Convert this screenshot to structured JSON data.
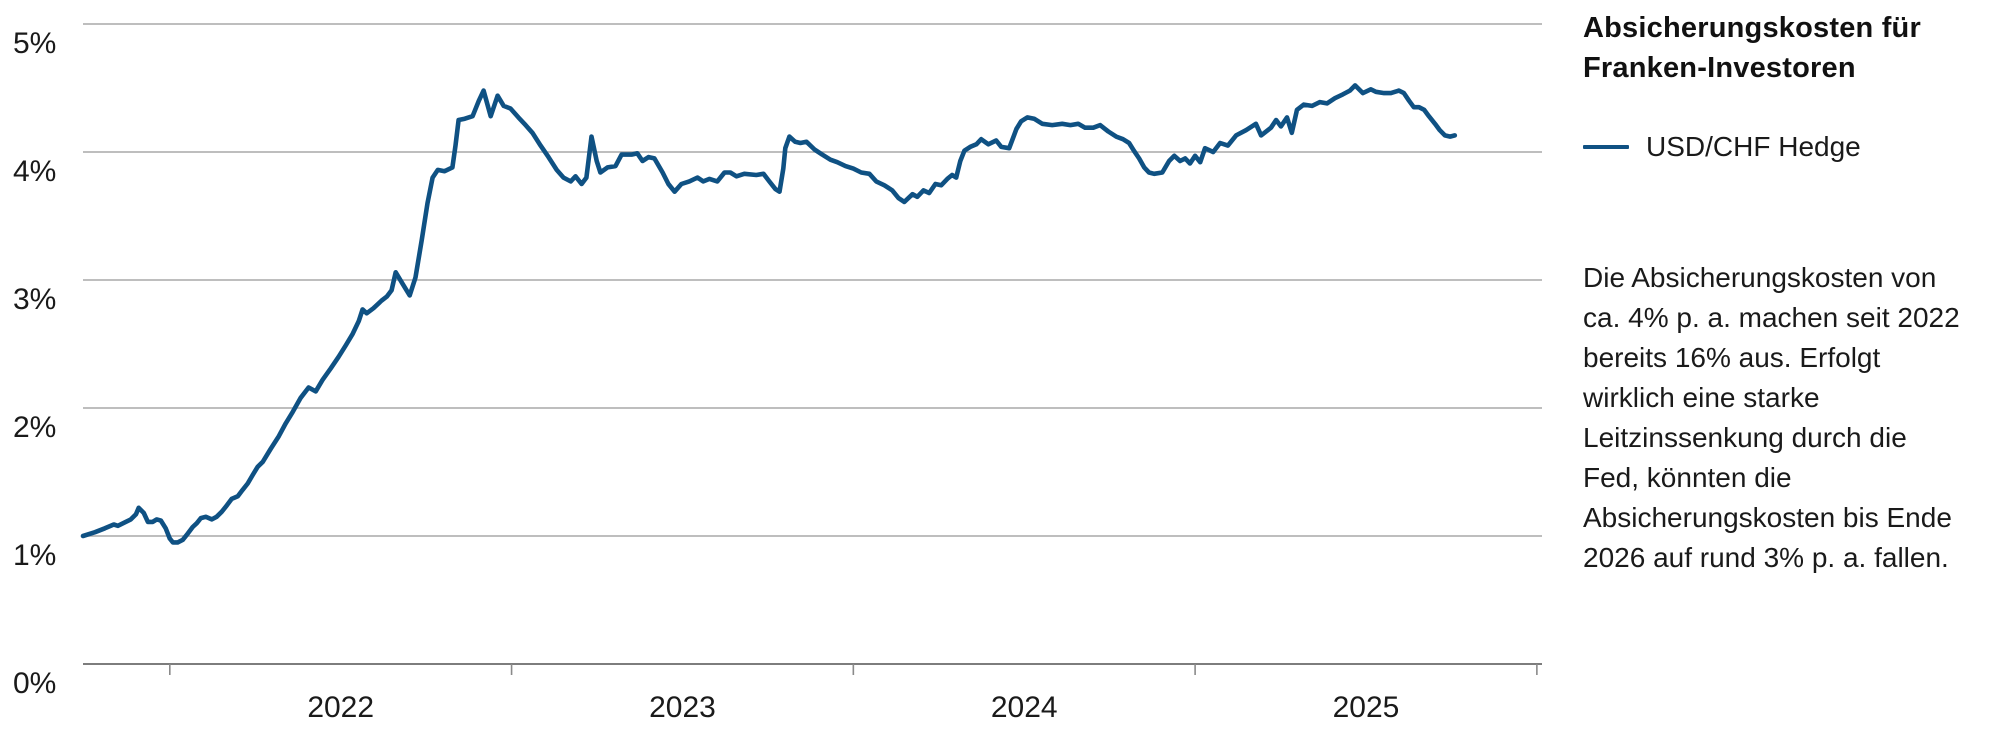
{
  "header": {
    "title": "Absicherungskosten für Franken-Investoren"
  },
  "legend": {
    "label": "USD/CHF Hedge"
  },
  "commentary": "Die Absicherungskosten von ca. 4% p. a. machen seit 2022 bereits 16% aus. Erfolgt wirklich eine starke Leitzinssenkung durch die Fed, könnten die Absicherungskosten bis Ende 2026 auf rund 3% p. a. fallen.",
  "colors": {
    "line": "#0F5183",
    "grid": "#A8A8A8",
    "axis": "#7D7D7D",
    "tick": "#8A8A8A",
    "text": "#1A1A1A"
  },
  "chart_data": {
    "type": "line",
    "title": "Absicherungskosten für Franken-Investoren",
    "xlabel": "",
    "ylabel": "",
    "grid": true,
    "legend_position": "right",
    "ylim": [
      0,
      5
    ],
    "y_tick_labels": [
      "0%",
      "1%",
      "2%",
      "3%",
      "4%",
      "5%"
    ],
    "x_range": [
      2021.746,
      2026.015
    ],
    "x_tick_positions": [
      2022,
      2023,
      2024,
      2025,
      2026
    ],
    "x_year_labels": [
      {
        "label": "2022",
        "t": 2022.5
      },
      {
        "label": "2023",
        "t": 2023.5
      },
      {
        "label": "2024",
        "t": 2024.5
      },
      {
        "label": "2025",
        "t": 2025.5
      }
    ],
    "series": [
      {
        "name": "USD/CHF Hedge",
        "points": [
          [
            2021.746,
            1.0
          ],
          [
            2021.781,
            1.03
          ],
          [
            2021.81,
            1.06
          ],
          [
            2021.836,
            1.09
          ],
          [
            2021.848,
            1.08
          ],
          [
            2021.871,
            1.11
          ],
          [
            2021.886,
            1.13
          ],
          [
            2021.901,
            1.17
          ],
          [
            2021.909,
            1.22
          ],
          [
            2021.924,
            1.18
          ],
          [
            2021.936,
            1.11
          ],
          [
            2021.95,
            1.11
          ],
          [
            2021.962,
            1.13
          ],
          [
            2021.974,
            1.12
          ],
          [
            2021.988,
            1.06
          ],
          [
            2022.0,
            0.98
          ],
          [
            2022.009,
            0.95
          ],
          [
            2022.023,
            0.95
          ],
          [
            2022.038,
            0.97
          ],
          [
            2022.053,
            1.02
          ],
          [
            2022.067,
            1.07
          ],
          [
            2022.079,
            1.1
          ],
          [
            2022.091,
            1.14
          ],
          [
            2022.105,
            1.15
          ],
          [
            2022.123,
            1.13
          ],
          [
            2022.137,
            1.15
          ],
          [
            2022.152,
            1.19
          ],
          [
            2022.167,
            1.24
          ],
          [
            2022.181,
            1.29
          ],
          [
            2022.199,
            1.31
          ],
          [
            2022.213,
            1.36
          ],
          [
            2022.228,
            1.41
          ],
          [
            2022.243,
            1.48
          ],
          [
            2022.257,
            1.54
          ],
          [
            2022.272,
            1.58
          ],
          [
            2022.295,
            1.68
          ],
          [
            2022.319,
            1.78
          ],
          [
            2022.339,
            1.88
          ],
          [
            2022.36,
            1.97
          ],
          [
            2022.383,
            2.08
          ],
          [
            2022.406,
            2.16
          ],
          [
            2022.427,
            2.13
          ],
          [
            2022.447,
            2.22
          ],
          [
            2022.471,
            2.31
          ],
          [
            2022.494,
            2.4
          ],
          [
            2022.515,
            2.49
          ],
          [
            2022.535,
            2.58
          ],
          [
            2022.553,
            2.68
          ],
          [
            2022.564,
            2.77
          ],
          [
            2022.576,
            2.74
          ],
          [
            2022.596,
            2.78
          ],
          [
            2022.62,
            2.84
          ],
          [
            2022.635,
            2.87
          ],
          [
            2022.649,
            2.92
          ],
          [
            2022.661,
            3.06
          ],
          [
            2022.681,
            2.97
          ],
          [
            2022.702,
            2.88
          ],
          [
            2022.719,
            3.02
          ],
          [
            2022.737,
            3.31
          ],
          [
            2022.754,
            3.6
          ],
          [
            2022.769,
            3.8
          ],
          [
            2022.784,
            3.86
          ],
          [
            2022.804,
            3.85
          ],
          [
            2022.827,
            3.88
          ],
          [
            2022.836,
            4.05
          ],
          [
            2022.845,
            4.25
          ],
          [
            2022.863,
            4.26
          ],
          [
            2022.886,
            4.28
          ],
          [
            2022.904,
            4.4
          ],
          [
            2022.918,
            4.48
          ],
          [
            2022.939,
            4.28
          ],
          [
            2022.959,
            4.44
          ],
          [
            2022.977,
            4.36
          ],
          [
            2022.997,
            4.34
          ],
          [
            2023.02,
            4.27
          ],
          [
            2023.041,
            4.21
          ],
          [
            2023.061,
            4.15
          ],
          [
            2023.085,
            4.05
          ],
          [
            2023.108,
            3.96
          ],
          [
            2023.132,
            3.86
          ],
          [
            2023.152,
            3.8
          ],
          [
            2023.173,
            3.77
          ],
          [
            2023.187,
            3.81
          ],
          [
            2023.205,
            3.75
          ],
          [
            2023.219,
            3.8
          ],
          [
            2023.234,
            4.12
          ],
          [
            2023.249,
            3.93
          ],
          [
            2023.26,
            3.84
          ],
          [
            2023.281,
            3.88
          ],
          [
            2023.304,
            3.89
          ],
          [
            2023.322,
            3.98
          ],
          [
            2023.351,
            3.98
          ],
          [
            2023.368,
            3.99
          ],
          [
            2023.383,
            3.93
          ],
          [
            2023.401,
            3.96
          ],
          [
            2023.418,
            3.95
          ],
          [
            2023.442,
            3.84
          ],
          [
            2023.459,
            3.75
          ],
          [
            2023.477,
            3.69
          ],
          [
            2023.497,
            3.75
          ],
          [
            2023.52,
            3.77
          ],
          [
            2023.544,
            3.8
          ],
          [
            2023.561,
            3.77
          ],
          [
            2023.579,
            3.79
          ],
          [
            2023.602,
            3.77
          ],
          [
            2023.623,
            3.84
          ],
          [
            2023.64,
            3.84
          ],
          [
            2023.658,
            3.81
          ],
          [
            2023.681,
            3.83
          ],
          [
            2023.716,
            3.82
          ],
          [
            2023.737,
            3.83
          ],
          [
            2023.754,
            3.77
          ],
          [
            2023.772,
            3.71
          ],
          [
            2023.784,
            3.69
          ],
          [
            2023.795,
            3.87
          ],
          [
            2023.801,
            4.03
          ],
          [
            2023.813,
            4.12
          ],
          [
            2023.83,
            4.08
          ],
          [
            2023.845,
            4.07
          ],
          [
            2023.863,
            4.08
          ],
          [
            2023.886,
            4.02
          ],
          [
            2023.909,
            3.98
          ],
          [
            2023.933,
            3.94
          ],
          [
            2023.953,
            3.92
          ],
          [
            2023.977,
            3.89
          ],
          [
            2024.0,
            3.87
          ],
          [
            2024.023,
            3.84
          ],
          [
            2024.047,
            3.83
          ],
          [
            2024.067,
            3.77
          ],
          [
            2024.091,
            3.74
          ],
          [
            2024.114,
            3.7
          ],
          [
            2024.132,
            3.64
          ],
          [
            2024.149,
            3.61
          ],
          [
            2024.173,
            3.67
          ],
          [
            2024.187,
            3.65
          ],
          [
            2024.205,
            3.7
          ],
          [
            2024.222,
            3.68
          ],
          [
            2024.24,
            3.75
          ],
          [
            2024.257,
            3.74
          ],
          [
            2024.275,
            3.79
          ],
          [
            2024.289,
            3.82
          ],
          [
            2024.301,
            3.8
          ],
          [
            2024.313,
            3.93
          ],
          [
            2024.325,
            4.01
          ],
          [
            2024.342,
            4.04
          ],
          [
            2024.36,
            4.06
          ],
          [
            2024.374,
            4.1
          ],
          [
            2024.395,
            4.06
          ],
          [
            2024.418,
            4.09
          ],
          [
            2024.433,
            4.04
          ],
          [
            2024.456,
            4.03
          ],
          [
            2024.477,
            4.18
          ],
          [
            2024.491,
            4.24
          ],
          [
            2024.509,
            4.27
          ],
          [
            2024.529,
            4.26
          ],
          [
            2024.553,
            4.22
          ],
          [
            2024.582,
            4.21
          ],
          [
            2024.611,
            4.22
          ],
          [
            2024.635,
            4.21
          ],
          [
            2024.658,
            4.22
          ],
          [
            2024.678,
            4.19
          ],
          [
            2024.702,
            4.19
          ],
          [
            2024.722,
            4.21
          ],
          [
            2024.746,
            4.16
          ],
          [
            2024.769,
            4.12
          ],
          [
            2024.789,
            4.1
          ],
          [
            2024.807,
            4.07
          ],
          [
            2024.821,
            4.01
          ],
          [
            2024.836,
            3.95
          ],
          [
            2024.851,
            3.88
          ],
          [
            2024.865,
            3.84
          ],
          [
            2024.88,
            3.83
          ],
          [
            2024.904,
            3.84
          ],
          [
            2024.924,
            3.93
          ],
          [
            2024.939,
            3.97
          ],
          [
            2024.956,
            3.93
          ],
          [
            2024.971,
            3.95
          ],
          [
            2024.985,
            3.91
          ],
          [
            2025.0,
            3.97
          ],
          [
            2025.015,
            3.92
          ],
          [
            2025.029,
            4.03
          ],
          [
            2025.053,
            4.0
          ],
          [
            2025.073,
            4.07
          ],
          [
            2025.096,
            4.05
          ],
          [
            2025.12,
            4.13
          ],
          [
            2025.149,
            4.17
          ],
          [
            2025.178,
            4.22
          ],
          [
            2025.193,
            4.13
          ],
          [
            2025.222,
            4.19
          ],
          [
            2025.237,
            4.25
          ],
          [
            2025.251,
            4.2
          ],
          [
            2025.269,
            4.27
          ],
          [
            2025.283,
            4.15
          ],
          [
            2025.298,
            4.33
          ],
          [
            2025.318,
            4.37
          ],
          [
            2025.342,
            4.36
          ],
          [
            2025.365,
            4.39
          ],
          [
            2025.386,
            4.38
          ],
          [
            2025.409,
            4.42
          ],
          [
            2025.432,
            4.45
          ],
          [
            2025.453,
            4.48
          ],
          [
            2025.468,
            4.52
          ],
          [
            2025.491,
            4.46
          ],
          [
            2025.514,
            4.49
          ],
          [
            2025.529,
            4.47
          ],
          [
            2025.553,
            4.46
          ],
          [
            2025.573,
            4.46
          ],
          [
            2025.596,
            4.48
          ],
          [
            2025.611,
            4.46
          ],
          [
            2025.626,
            4.4
          ],
          [
            2025.64,
            4.35
          ],
          [
            2025.655,
            4.35
          ],
          [
            2025.67,
            4.33
          ],
          [
            2025.684,
            4.28
          ],
          [
            2025.702,
            4.22
          ],
          [
            2025.716,
            4.17
          ],
          [
            2025.731,
            4.13
          ],
          [
            2025.746,
            4.12
          ],
          [
            2025.76,
            4.13
          ]
        ]
      }
    ]
  }
}
